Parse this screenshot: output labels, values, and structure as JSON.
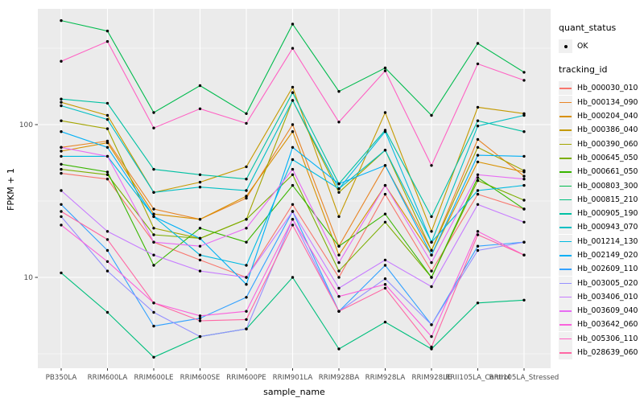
{
  "chart_data": {
    "type": "line",
    "title": "",
    "xlabel": "sample_name",
    "ylabel": "FPKM + 1",
    "y_scale": "log10",
    "y_ticks": [
      10,
      100
    ],
    "ylim": [
      2.5,
      570
    ],
    "grid": "major-and-minor, white on grey panel",
    "legend_position": "right",
    "x_categories": [
      "PB350LA",
      "RRIM600LA",
      "RRIM600LE",
      "RRIM600SE",
      "RRIM600PE",
      "RRIM901LA",
      "RRIM928BA",
      "RRIM928LA",
      "RRIM928LE",
      "RRII105LA_Control",
      "RRII105LA_Stressed"
    ],
    "point_marker": {
      "shape": "filled-circle",
      "color": "#000000"
    },
    "legend": {
      "quant_status": {
        "title": "quant_status",
        "items": [
          {
            "label": "OK"
          }
        ]
      },
      "tracking_id": {
        "title": "tracking_id"
      }
    },
    "series": [
      {
        "name": "Hb_000030_010",
        "color": "#F8766D",
        "values": [
          48,
          44,
          17,
          13,
          10,
          30,
          10,
          35,
          11,
          35,
          28
        ]
      },
      {
        "name": "Hb_000134_090",
        "color": "#E88526",
        "values": [
          71,
          78,
          28,
          24,
          33,
          100,
          16,
          54,
          15,
          80,
          46
        ]
      },
      {
        "name": "Hb_000204_040",
        "color": "#D89000",
        "values": [
          67,
          76,
          26,
          24,
          34,
          90,
          14,
          40,
          14,
          57,
          49
        ]
      },
      {
        "name": "Hb_000386_040",
        "color": "#C49A00",
        "values": [
          140,
          115,
          36,
          42,
          53,
          176,
          25,
          120,
          20,
          130,
          118
        ]
      },
      {
        "name": "Hb_000390_060",
        "color": "#A3A500",
        "values": [
          106,
          94,
          21,
          18,
          24,
          144,
          36,
          68,
          15,
          71,
          50
        ]
      },
      {
        "name": "Hb_000645_050",
        "color": "#7CAE00",
        "values": [
          51,
          47,
          19,
          18,
          24,
          47,
          11,
          23,
          10,
          43,
          32
        ]
      },
      {
        "name": "Hb_000661_050",
        "color": "#39B600",
        "values": [
          55,
          49,
          12,
          21,
          17,
          40,
          16,
          26,
          10,
          45,
          28
        ]
      },
      {
        "name": "Hb_000803_300",
        "color": "#00BB4E",
        "values": [
          480,
          410,
          120,
          180,
          118,
          455,
          165,
          235,
          115,
          340,
          220
        ]
      },
      {
        "name": "Hb_000815_210",
        "color": "#00BF7D",
        "values": [
          10.7,
          5.9,
          3.0,
          4.1,
          4.6,
          10.0,
          3.4,
          5.1,
          3.4,
          6.8,
          7.1
        ]
      },
      {
        "name": "Hb_000905_190",
        "color": "#00C1A3",
        "values": [
          147,
          138,
          51,
          47,
          44,
          162,
          41,
          92,
          25,
          106,
          90
        ]
      },
      {
        "name": "Hb_000943_070",
        "color": "#00BFC4",
        "values": [
          133,
          108,
          36,
          39,
          37,
          144,
          38,
          68,
          17,
          98,
          115
        ]
      },
      {
        "name": "Hb_001214_130",
        "color": "#00BAE0",
        "values": [
          62,
          62,
          25,
          14,
          12,
          59,
          38,
          90,
          17,
          37,
          40
        ]
      },
      {
        "name": "Hb_002149_020",
        "color": "#00B0F6",
        "values": [
          90,
          71,
          25,
          18,
          9,
          71,
          41,
          54,
          14,
          63,
          62
        ]
      },
      {
        "name": "Hb_002609_110",
        "color": "#35A2FF",
        "values": [
          30,
          15,
          4.8,
          5.4,
          7.4,
          27,
          6,
          12,
          4.9,
          16,
          17
        ]
      },
      {
        "name": "Hb_003005_020",
        "color": "#9590FF",
        "values": [
          25,
          11,
          5.9,
          4.1,
          4.6,
          24,
          6,
          9.8,
          4.9,
          15,
          17
        ]
      },
      {
        "name": "Hb_003406_010",
        "color": "#C77CFF",
        "values": [
          37,
          20,
          14,
          11,
          10,
          27,
          8.5,
          13,
          8.7,
          30,
          23
        ]
      },
      {
        "name": "Hb_003609_040",
        "color": "#E76BF3",
        "values": [
          71,
          62,
          17,
          16,
          21,
          51,
          12.5,
          40,
          12.5,
          47,
          44
        ]
      },
      {
        "name": "Hb_003642_060",
        "color": "#FA62DB",
        "values": [
          22,
          12.7,
          6.8,
          5.6,
          6.0,
          24,
          7.5,
          9.0,
          4.1,
          20,
          14
        ]
      },
      {
        "name": "Hb_005306_110",
        "color": "#FF61C3",
        "values": [
          260,
          350,
          95,
          127,
          102,
          316,
          104,
          225,
          54,
          250,
          195
        ]
      },
      {
        "name": "Hb_028639_060",
        "color": "#FF67A4",
        "values": [
          27,
          17.7,
          6.8,
          5.2,
          5.3,
          22,
          6,
          8.5,
          3.5,
          19,
          14
        ]
      }
    ]
  },
  "style": {
    "panel_bg": "#EBEBEB",
    "grid_color": "#FFFFFF",
    "tick_color": "#333333",
    "tick_label_color": "#4D4D4D",
    "legend_key_bg": "#F0F0F0"
  }
}
